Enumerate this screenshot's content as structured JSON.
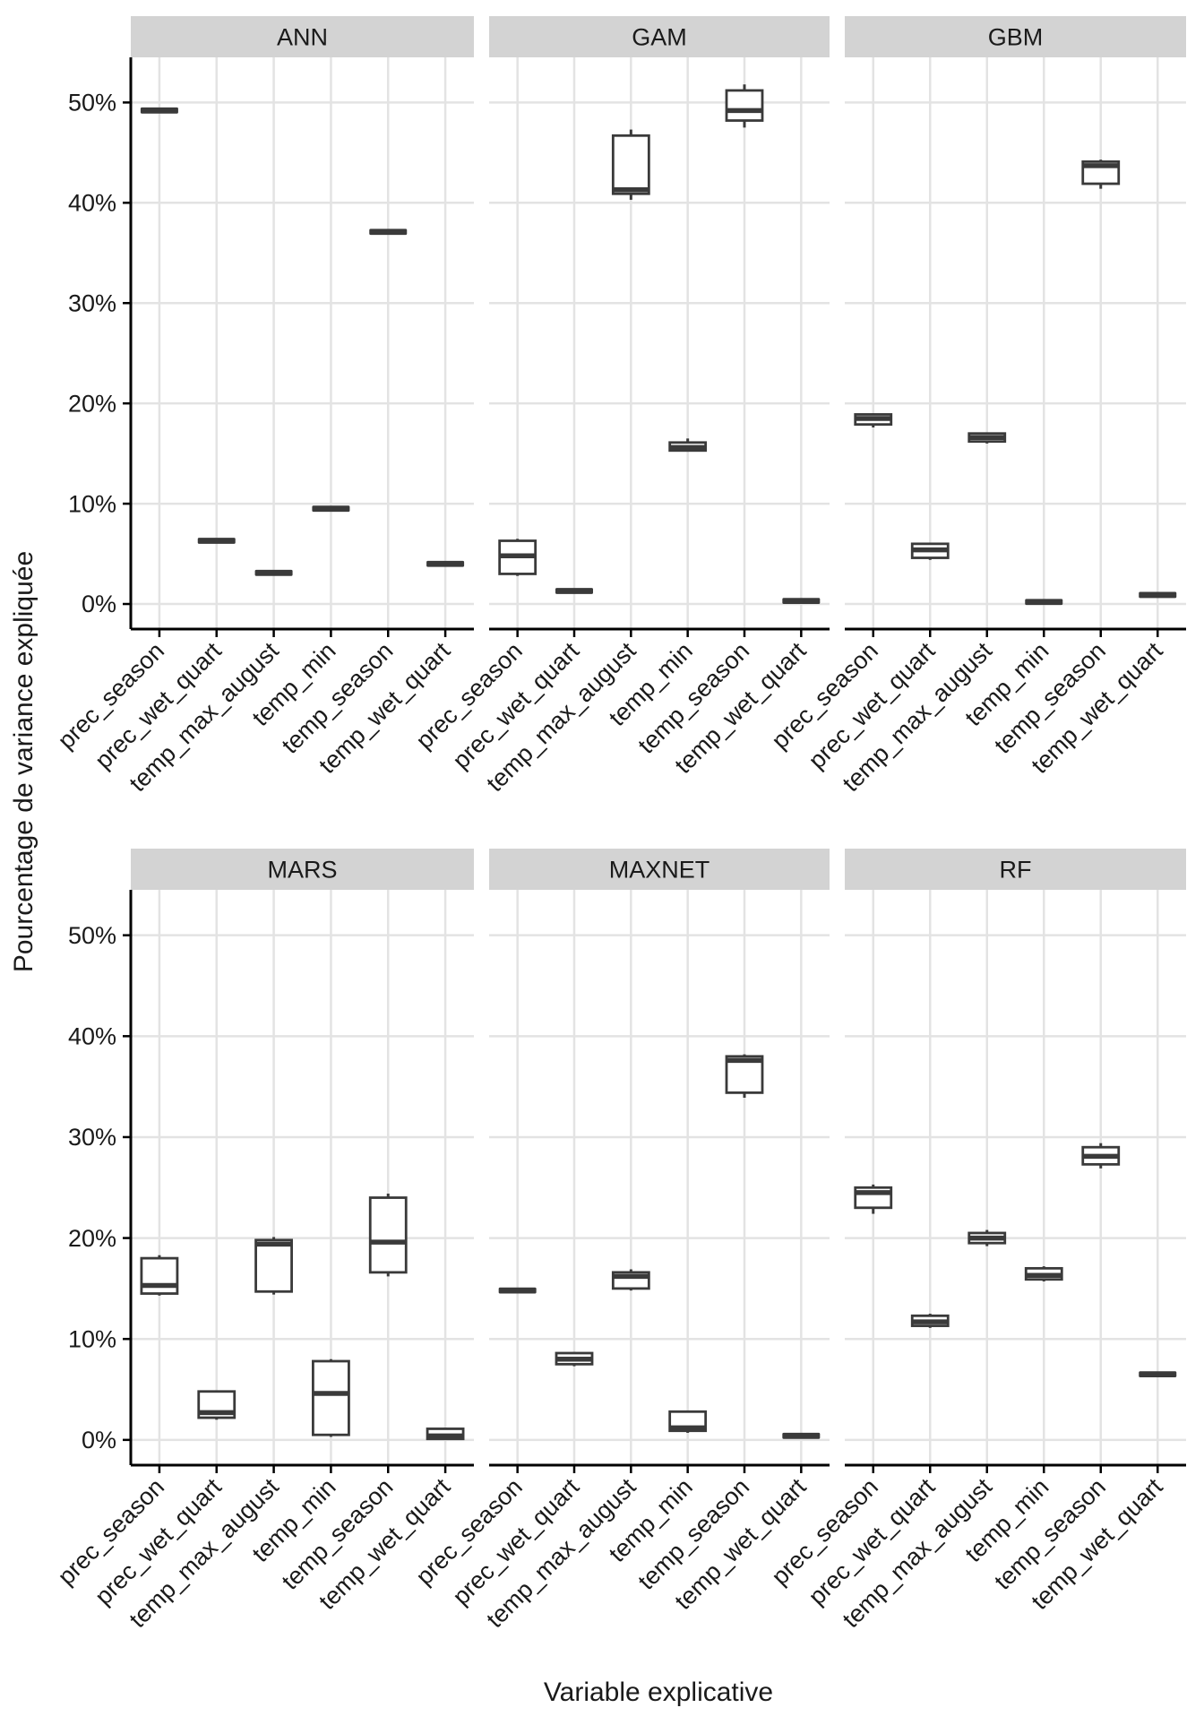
{
  "figure": {
    "ylabel": "Pourcentage de variance expliquée",
    "xlabel": "Variable explicative"
  },
  "chart_data": {
    "type": "boxplot",
    "title": "",
    "xlabel": "Variable explicative",
    "ylabel": "Pourcentage de variance expliquée",
    "facets": [
      "ANN",
      "GAM",
      "GBM",
      "MARS",
      "MAXNET",
      "RF"
    ],
    "facet_layout": {
      "rows": 2,
      "cols": 3
    },
    "categories": [
      "prec_season",
      "prec_wet_quart",
      "temp_max_august",
      "temp_min",
      "temp_season",
      "temp_wet_quart"
    ],
    "y_tick_values": [
      0,
      10,
      20,
      30,
      40,
      50
    ],
    "y_tick_labels": [
      "0%",
      "10%",
      "20%",
      "30%",
      "40%",
      "50%"
    ],
    "ylim": [
      -2.5,
      54.5
    ],
    "units": "percent",
    "grid": true,
    "legend": false,
    "boxes_format": "per facet, per category: [min, q1, median, q3, max] in percent",
    "boxes": {
      "ANN": [
        [
          49.2,
          49.2,
          49.2,
          49.2,
          49.2
        ],
        [
          6.3,
          6.3,
          6.3,
          6.3,
          6.3
        ],
        [
          3.1,
          3.1,
          3.1,
          3.1,
          3.1
        ],
        [
          9.5,
          9.5,
          9.5,
          9.5,
          9.5
        ],
        [
          37.1,
          37.1,
          37.1,
          37.1,
          37.1
        ],
        [
          4.0,
          4.0,
          4.0,
          4.0,
          4.0
        ]
      ],
      "GAM": [
        [
          2.8,
          3.0,
          4.8,
          6.3,
          6.5
        ],
        [
          1.3,
          1.3,
          1.3,
          1.3,
          1.3
        ],
        [
          40.3,
          40.9,
          41.3,
          46.7,
          47.3
        ],
        [
          15.2,
          15.3,
          15.6,
          16.1,
          16.5
        ],
        [
          47.5,
          48.2,
          49.2,
          51.2,
          51.8
        ],
        [
          0.3,
          0.3,
          0.3,
          0.3,
          0.3
        ]
      ],
      "GBM": [
        [
          17.6,
          17.9,
          18.5,
          18.9,
          19.0
        ],
        [
          4.4,
          4.6,
          5.4,
          6.0,
          6.1
        ],
        [
          16.0,
          16.2,
          16.6,
          17.0,
          17.1
        ],
        [
          0.2,
          0.2,
          0.2,
          0.2,
          0.2
        ],
        [
          41.4,
          41.9,
          43.7,
          44.1,
          44.3
        ],
        [
          0.9,
          0.9,
          0.9,
          0.9,
          0.9
        ]
      ],
      "MARS": [
        [
          14.3,
          14.5,
          15.3,
          18.0,
          18.3
        ],
        [
          2.0,
          2.2,
          2.7,
          4.8,
          4.9
        ],
        [
          14.4,
          14.7,
          19.4,
          19.8,
          20.1
        ],
        [
          0.3,
          0.5,
          4.6,
          7.8,
          8.0
        ],
        [
          16.2,
          16.6,
          19.6,
          24.0,
          24.4
        ],
        [
          0.0,
          0.1,
          0.4,
          1.1,
          1.2
        ]
      ],
      "MAXNET": [
        [
          14.8,
          14.8,
          14.8,
          14.8,
          14.8
        ],
        [
          7.3,
          7.5,
          8.0,
          8.6,
          8.7
        ],
        [
          14.8,
          15.0,
          16.2,
          16.6,
          16.9
        ],
        [
          0.7,
          0.9,
          1.2,
          2.8,
          2.9
        ],
        [
          33.9,
          34.4,
          37.6,
          38.0,
          38.2
        ],
        [
          0.4,
          0.4,
          0.4,
          0.4,
          0.4
        ]
      ],
      "RF": [
        [
          22.4,
          23.0,
          24.5,
          25.0,
          25.3
        ],
        [
          11.1,
          11.3,
          11.7,
          12.3,
          12.5
        ],
        [
          19.2,
          19.5,
          20.0,
          20.5,
          20.8
        ],
        [
          15.7,
          15.9,
          16.3,
          17.0,
          17.2
        ],
        [
          26.9,
          27.3,
          28.1,
          29.0,
          29.4
        ],
        [
          6.5,
          6.5,
          6.5,
          6.5,
          6.5
        ]
      ]
    },
    "colors": {
      "box_stroke": "#3a3a3a",
      "box_fill": "#ffffff",
      "strip_bg": "#d3d3d3",
      "grid": "#e3e3e3",
      "axis": "#000000",
      "background": "#ffffff"
    }
  }
}
